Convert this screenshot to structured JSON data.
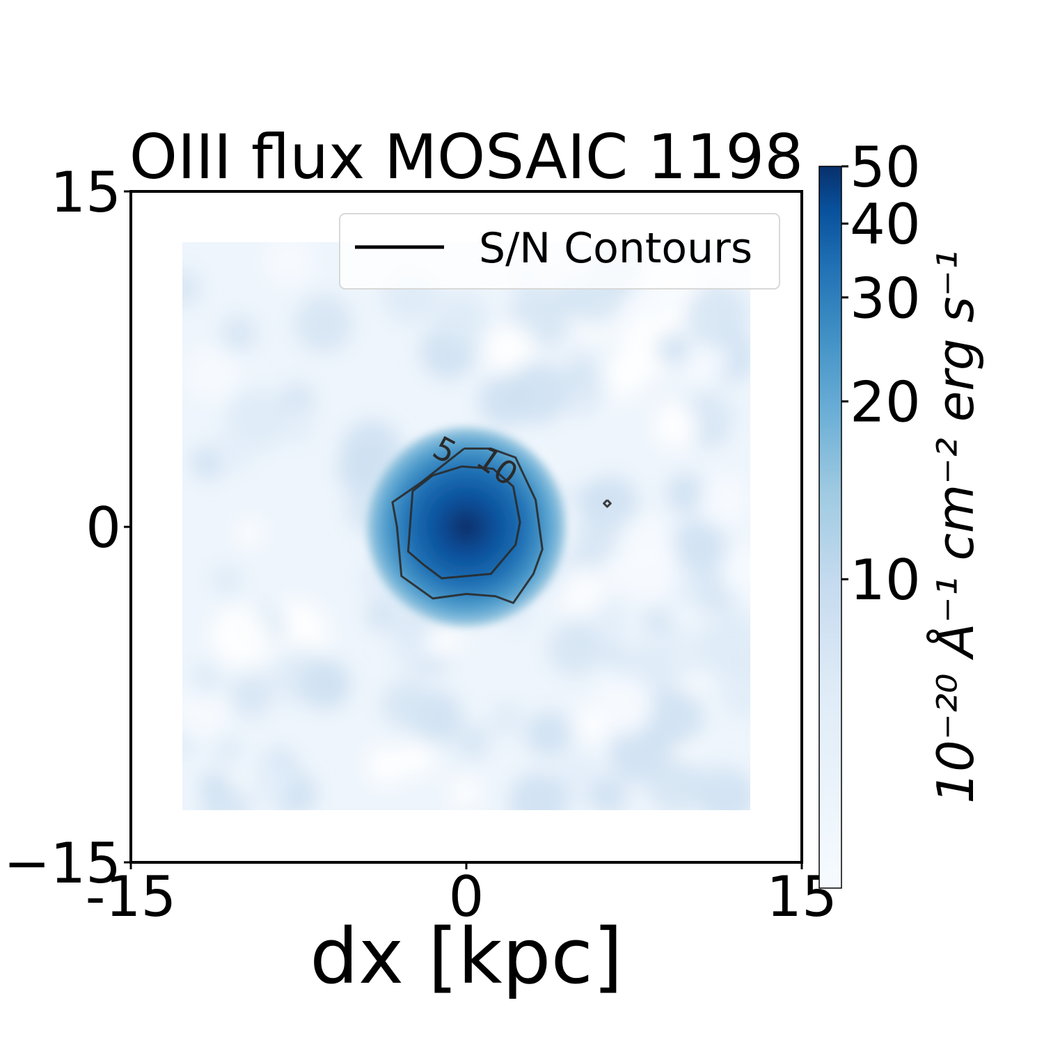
{
  "chart_data": {
    "type": "heatmap",
    "title": "OIII flux MOSAIC 1198",
    "xlabel": "dx [kpc]",
    "ylabel": "",
    "xlim": [
      -15,
      15
    ],
    "ylim": [
      -15,
      15
    ],
    "x_ticks": [
      {
        "value": -15,
        "label": "-15"
      },
      {
        "value": 0,
        "label": "0"
      },
      {
        "value": 15,
        "label": "15"
      }
    ],
    "y_ticks": [
      {
        "value": 15,
        "label": "15"
      },
      {
        "value": 0,
        "label": "0"
      },
      {
        "value": -15,
        "label": "−15"
      }
    ],
    "image_extent": {
      "x": [
        -12.7,
        12.7
      ],
      "y": [
        -12.7,
        12.7
      ]
    },
    "peak": {
      "x": 0,
      "y": 0,
      "value": 50
    },
    "colormap": "Blues",
    "colormap_colors": [
      "#f7fbff",
      "#deebf7",
      "#c6dbef",
      "#9ecae1",
      "#6baed6",
      "#4292c6",
      "#2171b5",
      "#08519c",
      "#08306b"
    ],
    "colorbar": {
      "label": "10⁻²⁰ Å⁻¹ cm⁻² erg s⁻¹",
      "scale": "log",
      "range": [
        3,
        50
      ],
      "ticks": [
        {
          "value": 10,
          "label": "10"
        },
        {
          "value": 20,
          "label": "20"
        },
        {
          "value": 30,
          "label": "30"
        },
        {
          "value": 40,
          "label": "40"
        },
        {
          "value": 50,
          "label": "50"
        }
      ]
    },
    "contours": [
      {
        "level": 5,
        "label": "5",
        "label_pos": [
          -1.2,
          3.0
        ],
        "label_rot": 28,
        "points": [
          [
            -0.1,
            3.5
          ],
          [
            1.1,
            3.5
          ],
          [
            2.2,
            3.1
          ],
          [
            3.1,
            1.2
          ],
          [
            3.4,
            -1.0
          ],
          [
            3.0,
            -2.1
          ],
          [
            2.1,
            -3.4
          ],
          [
            1.3,
            -3.1
          ],
          [
            0,
            -3.0
          ],
          [
            -1.5,
            -3.2
          ],
          [
            -2.9,
            -2.2
          ],
          [
            -3.1,
            0
          ],
          [
            -3.3,
            1.1
          ],
          [
            -2.0,
            2.0
          ],
          [
            -0.1,
            3.5
          ]
        ]
      },
      {
        "level": 10,
        "label": "10",
        "label_pos": [
          1.1,
          2.3
        ],
        "label_rot": 35,
        "points": [
          [
            -0.2,
            2.7
          ],
          [
            1.2,
            2.6
          ],
          [
            2.1,
            1.8
          ],
          [
            2.4,
            0.2
          ],
          [
            2.2,
            -0.8
          ],
          [
            1.1,
            -2.1
          ],
          [
            -1.1,
            -2.3
          ],
          [
            -1.9,
            -1.7
          ],
          [
            -2.6,
            -1.1
          ],
          [
            -2.4,
            1.6
          ],
          [
            -1.5,
            2.3
          ],
          [
            -0.2,
            2.7
          ]
        ]
      },
      {
        "level": 5,
        "label": "",
        "label_pos": null,
        "label_rot": 0,
        "points": [
          [
            6.3,
            1.2
          ],
          [
            6.45,
            1.05
          ],
          [
            6.3,
            0.9
          ],
          [
            6.15,
            1.05
          ],
          [
            6.3,
            1.2
          ]
        ]
      }
    ],
    "legend": {
      "entries": [
        "S/N Contours"
      ],
      "placement": "upper-right"
    },
    "grid": false
  }
}
